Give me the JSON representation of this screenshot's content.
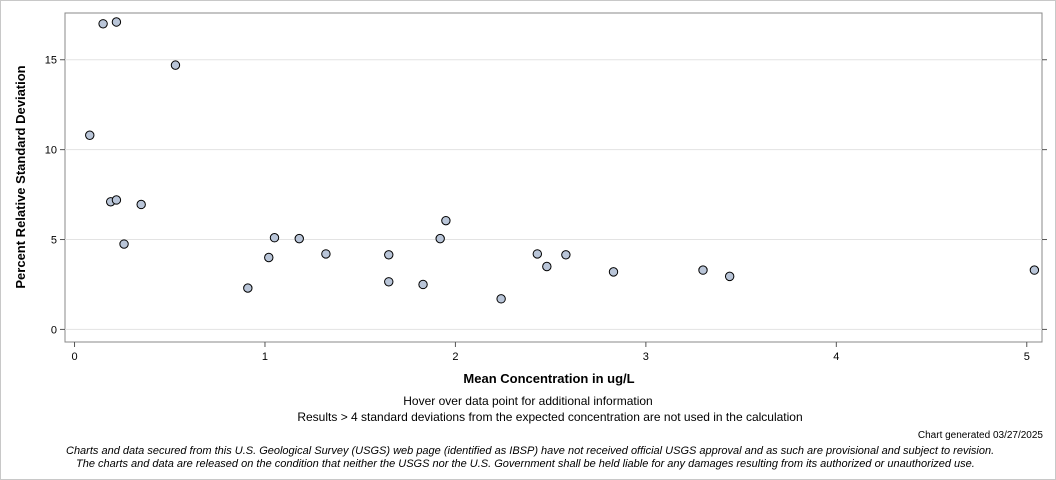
{
  "chart_data": {
    "type": "scatter",
    "title": "",
    "xlabel": "Mean Concentration in ug/L",
    "ylabel": "Percent Relative Standard Deviation",
    "xlim": [
      -0.05,
      5.08
    ],
    "ylim": [
      -0.7,
      17.6
    ],
    "xticks": [
      0,
      1,
      2,
      3,
      4,
      5
    ],
    "yticks": [
      0,
      5,
      10,
      15
    ],
    "xtick_labels": [
      "0",
      "1",
      "2",
      "3",
      "4",
      "5"
    ],
    "ytick_labels": [
      "0",
      "5",
      "10",
      "15"
    ],
    "grid": "horizontal",
    "marker_color": "#b9c5d8",
    "marker_edge": "#000000",
    "points": [
      {
        "x": 0.08,
        "y": 10.8
      },
      {
        "x": 0.15,
        "y": 17.0
      },
      {
        "x": 0.22,
        "y": 17.1
      },
      {
        "x": 0.53,
        "y": 14.7
      },
      {
        "x": 0.19,
        "y": 7.1
      },
      {
        "x": 0.22,
        "y": 7.2
      },
      {
        "x": 0.35,
        "y": 6.95
      },
      {
        "x": 0.26,
        "y": 4.75
      },
      {
        "x": 0.91,
        "y": 2.3
      },
      {
        "x": 1.02,
        "y": 4.0
      },
      {
        "x": 1.05,
        "y": 5.1
      },
      {
        "x": 1.18,
        "y": 5.05
      },
      {
        "x": 1.32,
        "y": 4.2
      },
      {
        "x": 1.65,
        "y": 4.15
      },
      {
        "x": 1.65,
        "y": 2.65
      },
      {
        "x": 1.83,
        "y": 2.5
      },
      {
        "x": 1.92,
        "y": 5.05
      },
      {
        "x": 1.95,
        "y": 6.05
      },
      {
        "x": 2.24,
        "y": 1.7
      },
      {
        "x": 2.43,
        "y": 4.2
      },
      {
        "x": 2.48,
        "y": 3.5
      },
      {
        "x": 2.58,
        "y": 4.15
      },
      {
        "x": 2.83,
        "y": 3.2
      },
      {
        "x": 3.3,
        "y": 3.3
      },
      {
        "x": 3.44,
        "y": 2.95
      },
      {
        "x": 5.04,
        "y": 3.3
      }
    ]
  },
  "notes": {
    "hover": "Hover over data point for additional information",
    "results": "Results > 4 standard deviations from the expected concentration are not used in the calculation"
  },
  "generated": "Chart generated 03/27/2025",
  "disclaimer": {
    "line1": "Charts and data secured from this U.S. Geological Survey (USGS) web page (identified as IBSP) have not received official USGS approval and as such are provisional and subject to revision.",
    "line2": "The charts and data are released on the condition that neither the USGS nor the U.S. Government shall be held liable for any damages resulting from its authorized or unauthorized use."
  }
}
